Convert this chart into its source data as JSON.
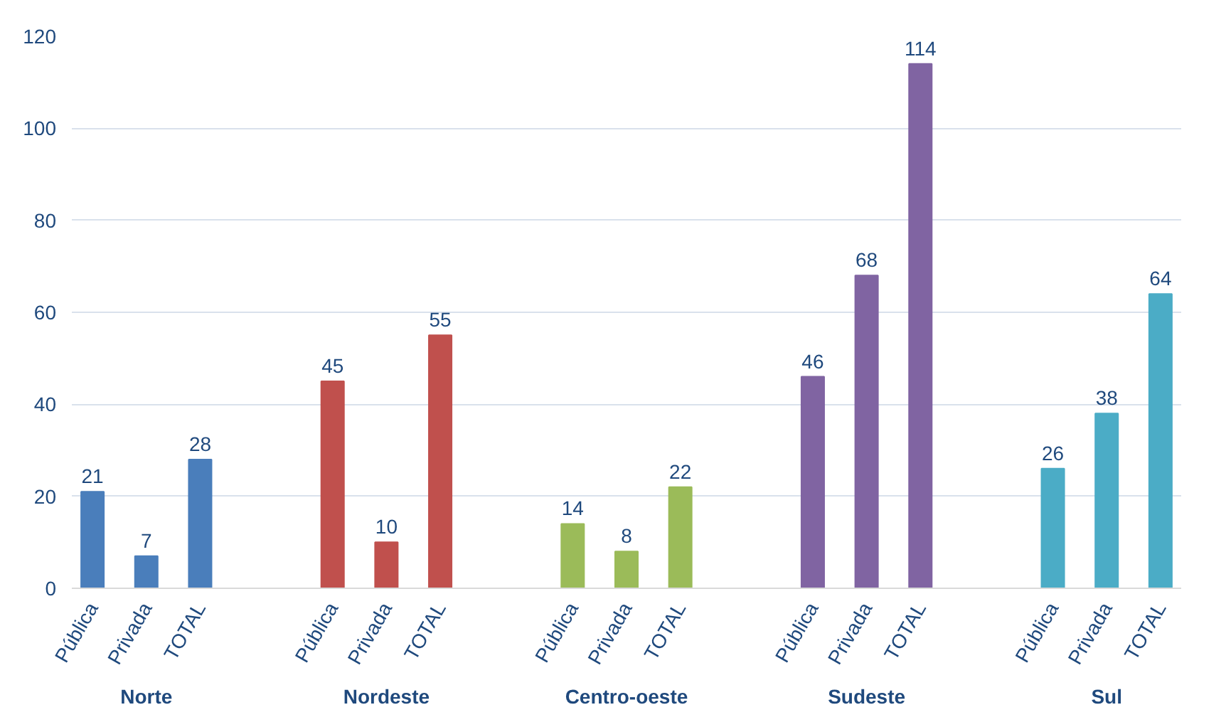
{
  "chart_data": {
    "type": "bar",
    "categories": [
      "Norte",
      "Nordeste",
      "Centro-oeste",
      "Sudeste",
      "Sul"
    ],
    "series": [
      {
        "name": "Pública",
        "colors": [
          "#4a7ebb",
          "#c0504d",
          "#9bbb59",
          "#8064a2",
          "#4bacc6"
        ],
        "values": [
          21,
          45,
          14,
          46,
          26
        ]
      },
      {
        "name": "Privada",
        "colors": [
          "#4a7ebb",
          "#c0504d",
          "#9bbb59",
          "#8064a2",
          "#4bacc6"
        ],
        "values": [
          7,
          10,
          8,
          68,
          38
        ]
      },
      {
        "name": "TOTAL",
        "colors": [
          "#4a7ebb",
          "#c0504d",
          "#9bbb59",
          "#8064a2",
          "#4bacc6"
        ],
        "values": [
          28,
          55,
          22,
          114,
          64
        ]
      }
    ],
    "ylim": [
      0,
      120
    ],
    "yticks": [
      0,
      20,
      40,
      60,
      80,
      100,
      120
    ],
    "grid": "y",
    "data_labels": true
  }
}
